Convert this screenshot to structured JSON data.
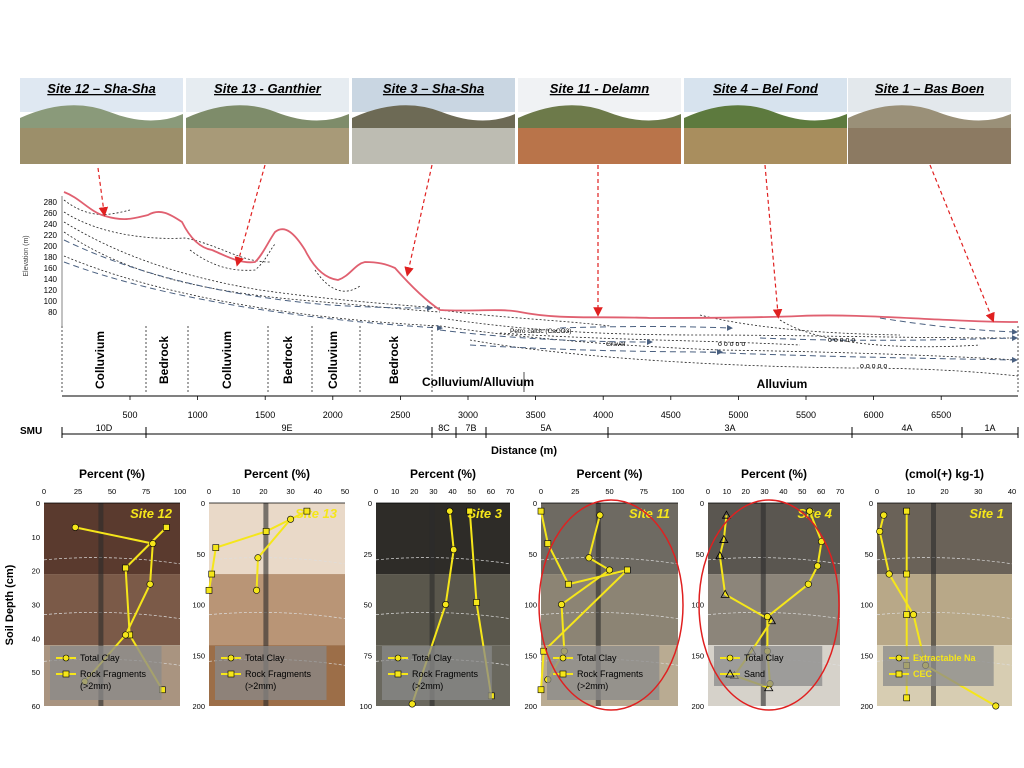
{
  "sites": [
    {
      "label": "Site 12 – Sha-Sha",
      "sky": "#dfe8f2",
      "mid": "#8a9a7a",
      "ground": "#9c8f6a"
    },
    {
      "label": "Site 13 - Ganthier",
      "sky": "#e6ecf1",
      "mid": "#7e8c6a",
      "ground": "#a89a78"
    },
    {
      "label": "Site 3 – Sha-Sha",
      "sky": "#c9d6e2",
      "mid": "#6d6a55",
      "ground": "#bdbcb2"
    },
    {
      "label": "Site 11 - Delamn",
      "sky": "#f0f2f4",
      "mid": "#6d7a4a",
      "ground": "#b9744a"
    },
    {
      "label": "Site 4 – Bel Fond",
      "sky": "#d7e3ee",
      "mid": "#5d7a3e",
      "ground": "#a98e5e"
    },
    {
      "label": "Site 1 – Bas Boen",
      "sky": "#e3e8ec",
      "mid": "#9a9078",
      "ground": "#8c7a62"
    }
  ],
  "profile": {
    "yaxis_label": "Elevation (m)",
    "y_ticks": [
      "280",
      "260",
      "240",
      "220",
      "200",
      "180",
      "160",
      "140",
      "120",
      "100",
      "80"
    ],
    "annotations": {
      "petrocalcic": "Petro calcic (CaCO3)",
      "gravel": "Gravel",
      "pebbles": "o o o o o"
    },
    "units": [
      {
        "label": "Colluvium",
        "vertical": true
      },
      {
        "label": "Bedrock",
        "vertical": true
      },
      {
        "label": "Colluvium",
        "vertical": true
      },
      {
        "label": "Bedrock",
        "vertical": true
      },
      {
        "label": "Colluvium",
        "vertical": true
      },
      {
        "label": "Bedrock",
        "vertical": true
      },
      {
        "label": "Colluvium/Alluvium",
        "vertical": false
      },
      {
        "label": "Alluvium",
        "vertical": false
      }
    ],
    "distance_ticks": [
      "500",
      "1000",
      "1500",
      "2000",
      "2500",
      "3000",
      "3500",
      "4000",
      "4500",
      "5000",
      "5500",
      "6000",
      "6500"
    ],
    "smu_label": "SMU",
    "smu_units": [
      "10D",
      "9E",
      "8C",
      "7B",
      "5A",
      "3A",
      "4A",
      "1A"
    ],
    "xaxis_label": "Distance (m)"
  },
  "soil_depth_label": "Soil Depth (cm)",
  "panels": [
    {
      "title": "Percent (%)",
      "site": "Site 12",
      "x_ticks": [
        "0",
        "25",
        "50",
        "75",
        "100"
      ],
      "y_ticks": [
        "0",
        "10",
        "20",
        "30",
        "40",
        "50",
        "60"
      ],
      "legend": [
        "Total Clay",
        "Rock Fragments",
        "(>2mm)"
      ]
    },
    {
      "title": "Percent (%)",
      "site": "Site 13",
      "x_ticks": [
        "0",
        "10",
        "20",
        "30",
        "40",
        "50"
      ],
      "y_ticks": [
        "0",
        "50",
        "100",
        "150",
        "200"
      ],
      "legend": [
        "Total Clay",
        "Rock Fragments",
        "(>2mm)"
      ]
    },
    {
      "title": "Percent (%)",
      "site": "Site 3",
      "x_ticks": [
        "0",
        "10",
        "20",
        "30",
        "40",
        "50",
        "60",
        "70"
      ],
      "y_ticks": [
        "0",
        "25",
        "50",
        "75",
        "100"
      ],
      "legend": [
        "Total Clay",
        "Rock Fragments",
        "(>2mm)"
      ]
    },
    {
      "title": "Percent (%)",
      "site": "Site 11",
      "x_ticks": [
        "0",
        "25",
        "50",
        "75",
        "100"
      ],
      "y_ticks": [
        "0",
        "50",
        "100",
        "150",
        "200"
      ],
      "legend": [
        "Total Clay",
        "Rock Fragments",
        "(>2mm)"
      ]
    },
    {
      "title": "Percent (%)",
      "site": "Site 4",
      "x_ticks": [
        "0",
        "10",
        "20",
        "30",
        "40",
        "50",
        "60",
        "70"
      ],
      "y_ticks": [
        "0",
        "50",
        "100",
        "150",
        "200"
      ],
      "legend": [
        "Total Clay",
        "Sand"
      ]
    },
    {
      "title": "(cmol(+) kg-1)",
      "site": "Site 1",
      "x_ticks": [
        "0",
        "10",
        "20",
        "30",
        "40"
      ],
      "y_ticks": [
        "0",
        "50",
        "100",
        "150",
        "200"
      ],
      "legend": [
        "Extractable Na",
        "CEC"
      ]
    }
  ],
  "colors": {
    "terrain": "#e06070",
    "flow": "#4a6080",
    "arrow": "#e02020",
    "data": "#f5e61a",
    "highlight": "#e02020"
  }
}
